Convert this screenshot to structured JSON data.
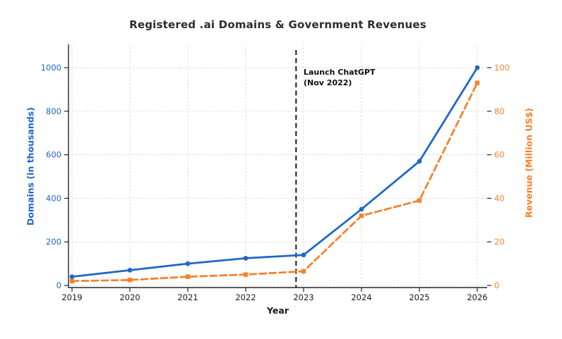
{
  "chart_data": {
    "type": "line",
    "title": "Registered .ai Domains & Government Revenues",
    "xlabel": "Year",
    "x": [
      2019,
      2020,
      2021,
      2022,
      2023,
      2024,
      2025,
      2026
    ],
    "series": [
      {
        "name": "Domains (in thousands)",
        "axis": "left",
        "color": "#2068c8",
        "line_style": "solid",
        "marker": "circle",
        "values": [
          40,
          70,
          100,
          125,
          140,
          350,
          570,
          1000
        ]
      },
      {
        "name": "Revenue (Million US$)",
        "axis": "right",
        "color": "#f5822d",
        "line_style": "dashed",
        "marker": "square",
        "values": [
          2,
          2.5,
          4,
          5,
          6.5,
          32,
          39,
          93
        ]
      }
    ],
    "left_axis": {
      "label": "Domains (in thousands)",
      "ticks": [
        0,
        200,
        400,
        600,
        800,
        1000
      ],
      "range": [
        0,
        1000
      ],
      "color": "#2068c8"
    },
    "right_axis": {
      "label": "Revenue (Million US$)",
      "ticks": [
        0,
        20,
        40,
        60,
        80,
        100
      ],
      "range": [
        0,
        100
      ],
      "color": "#f5822d"
    },
    "annotation": {
      "line1": "Launch ChatGPT",
      "line2": "(Nov 2022)",
      "x_year": 2022.87,
      "line_color": "#000000"
    },
    "grid": true,
    "legend_position": "none",
    "spine_color": "#262626",
    "grid_color": "#d7d7d7",
    "tick_label_color_x": "#1a1a1a"
  }
}
